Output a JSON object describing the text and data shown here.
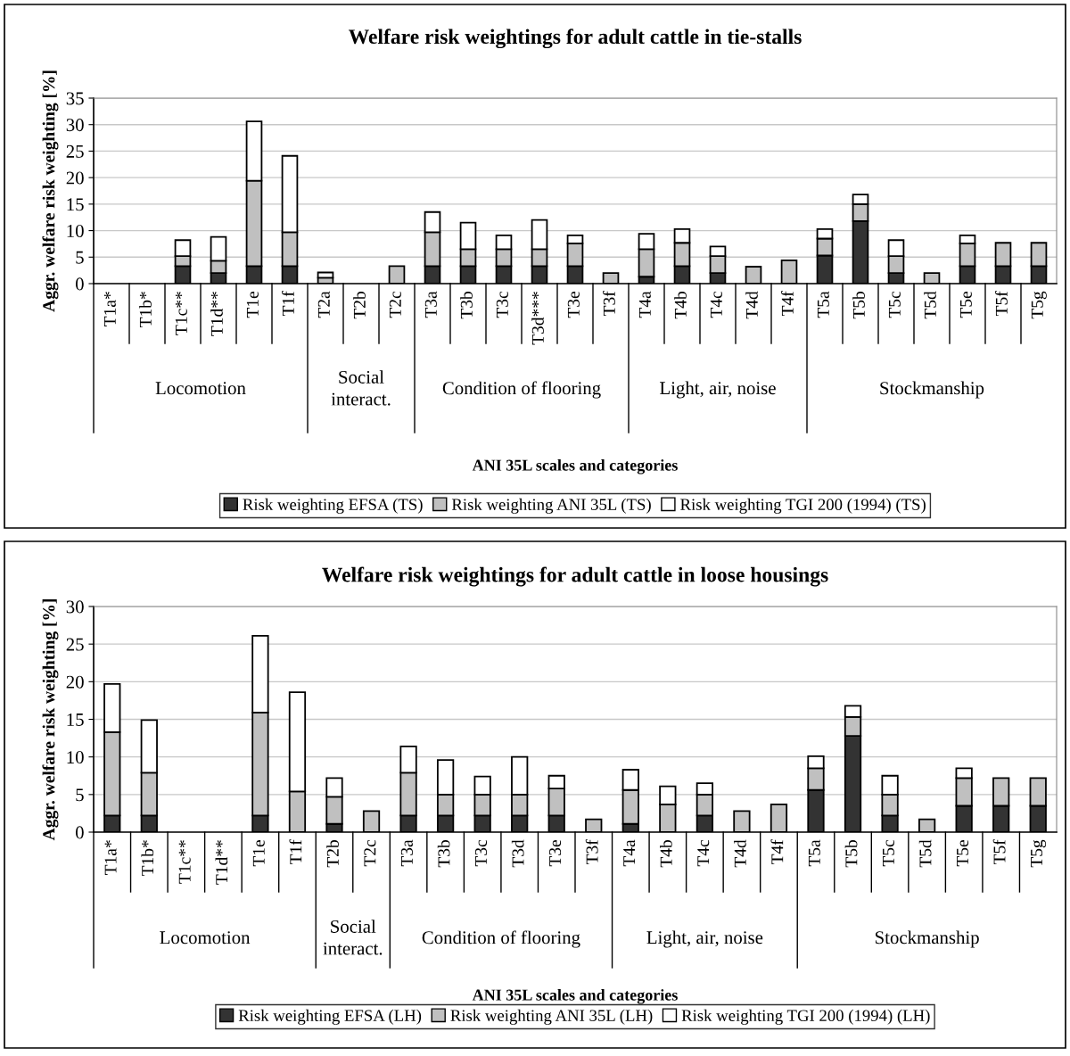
{
  "chart_data": [
    {
      "type": "bar",
      "stacked": true,
      "title": "Welfare risk weightings for adult cattle in tie-stalls",
      "ylabel": "Aggr. welfare risk weighting [%]",
      "xlabel": "ANI 35L scales and categories",
      "categories": [
        "T1a*",
        "T1b*",
        "T1c**",
        "T1d**",
        "T1e",
        "T1f",
        "T2a",
        "T2b",
        "T2c",
        "T3a",
        "T3b",
        "T3c",
        "T3d***",
        "T3e",
        "T3f",
        "T4a",
        "T4b",
        "T4c",
        "T4d",
        "T4f",
        "T5a",
        "T5b",
        "T5c",
        "T5d",
        "T5e",
        "T5f",
        "T5g"
      ],
      "series": [
        {
          "name": "Risk weighting EFSA (TS)",
          "color": "#333333",
          "values": [
            0,
            0,
            3.3,
            2.0,
            3.3,
            3.3,
            0,
            0,
            0,
            3.3,
            3.3,
            3.3,
            3.3,
            3.3,
            0,
            1.3,
            3.3,
            2.0,
            0,
            0,
            5.3,
            11.8,
            2.0,
            0,
            3.3,
            3.3,
            3.3
          ]
        },
        {
          "name": "Risk weighting ANI 35L (TS)",
          "color": "#c0c0c0",
          "values": [
            0,
            0,
            1.9,
            2.3,
            16.1,
            6.4,
            1.1,
            0,
            3.3,
            6.4,
            3.2,
            3.2,
            3.2,
            4.3,
            2.0,
            5.2,
            4.4,
            3.2,
            3.2,
            4.4,
            3.2,
            3.2,
            3.2,
            2.0,
            4.3,
            4.4,
            4.4
          ]
        },
        {
          "name": "Risk weighting TGI 200 (1994) (TS)",
          "color": "#ffffff",
          "values": [
            0,
            0,
            3.0,
            4.5,
            11.2,
            14.4,
            1.0,
            0,
            0,
            3.8,
            5.0,
            2.6,
            5.5,
            1.5,
            0,
            2.9,
            2.6,
            1.8,
            0,
            0,
            1.8,
            1.8,
            3.0,
            0,
            1.5,
            0,
            0
          ]
        }
      ],
      "ylim": [
        0,
        35
      ],
      "yticks": [
        0,
        5,
        10,
        15,
        20,
        25,
        30,
        35
      ],
      "grid": "y",
      "legend": "bottom",
      "annotations": [
        "Locomotion",
        "Social\ninteract.",
        "Condition of flooring",
        "Light, air, noise",
        "Stockmanship"
      ]
    },
    {
      "type": "bar",
      "stacked": true,
      "title": "Welfare risk weightings for adult cattle in loose housings",
      "ylabel": "Aggr. welfare risk weighting [%]",
      "xlabel": "ANI 35L scales and categories",
      "categories": [
        "T1a*",
        "T1b*",
        "T1c**",
        "T1d**",
        "T1e",
        "T1f",
        "T2b",
        "T2c",
        "T3a",
        "T3b",
        "T3c",
        "T3d",
        "T3e",
        "T3f",
        "T4a",
        "T4b",
        "T4c",
        "T4d",
        "T4f",
        "T5a",
        "T5b",
        "T5c",
        "T5d",
        "T5e",
        "T5f",
        "T5g"
      ],
      "series": [
        {
          "name": "Risk weighting EFSA (LH)",
          "color": "#333333",
          "values": [
            2.2,
            2.2,
            0,
            0,
            2.2,
            0,
            1.1,
            0,
            2.2,
            2.2,
            2.2,
            2.2,
            2.2,
            0,
            1.1,
            0,
            2.2,
            0,
            0,
            5.6,
            12.8,
            2.2,
            0,
            3.5,
            3.5,
            3.5
          ]
        },
        {
          "name": "Risk weighting ANI 35L (LH)",
          "color": "#c0c0c0",
          "values": [
            11.1,
            5.7,
            0,
            0,
            13.7,
            5.4,
            3.6,
            2.8,
            5.7,
            2.8,
            2.8,
            2.8,
            3.6,
            1.7,
            4.5,
            3.7,
            2.8,
            2.8,
            3.7,
            2.9,
            2.5,
            2.8,
            1.7,
            3.7,
            3.7,
            3.7
          ]
        },
        {
          "name": "Risk weighting TGI 200 (1994) (LH)",
          "color": "#ffffff",
          "values": [
            6.4,
            7.0,
            0,
            0,
            10.2,
            13.2,
            2.5,
            0,
            3.5,
            4.6,
            2.4,
            5.0,
            1.7,
            0,
            2.7,
            2.4,
            1.5,
            0,
            0,
            1.6,
            1.5,
            2.5,
            0,
            1.3,
            0,
            0
          ]
        }
      ],
      "ylim": [
        0,
        30
      ],
      "yticks": [
        0,
        5,
        10,
        15,
        20,
        25,
        30
      ],
      "grid": "y",
      "legend": "bottom",
      "annotations": [
        "Locomotion",
        "Social\ninteract.",
        "Condition of flooring",
        "Light, air, noise",
        "Stockmanship"
      ]
    }
  ]
}
